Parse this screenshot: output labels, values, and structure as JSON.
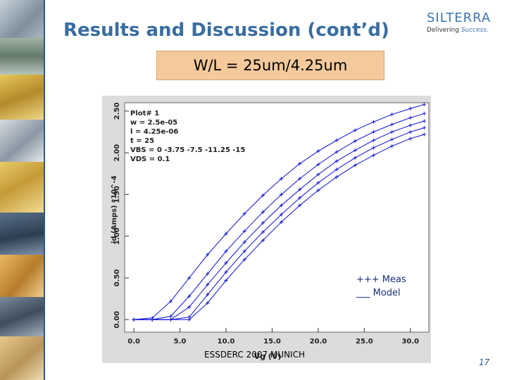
{
  "slide": {
    "title": "Results and Discussion (cont’d)",
    "subtitle": "W/L = 25um/4.25um",
    "footer": "ESSDERC 2007 MUNICH",
    "page_number": "17"
  },
  "logo": {
    "name": "SILTERRA",
    "tagline_prefix": "Delivering ",
    "tagline_emph": "Success."
  },
  "legend": {
    "meas": "+++ Meas",
    "model": "___ Model"
  },
  "colors": {
    "title": "#3a6da0",
    "series": "#1f24d6",
    "subtitle_box": "#f4c99c"
  },
  "chart_data": {
    "type": "line",
    "title": "",
    "xlabel": "Vg (V)",
    "ylabel": "id (Amps) *10^-4",
    "xlim": [
      -1,
      32
    ],
    "ylim": [
      -0.15,
      2.6
    ],
    "x_ticks": [
      "0.0",
      "5.0",
      "10.0",
      "15.0",
      "20.0",
      "25.0",
      "30.0"
    ],
    "y_ticks": [
      "0.00",
      "0.50",
      "1.00",
      "1.50",
      "2.00",
      "2.50"
    ],
    "grid": false,
    "legend_position": "bottom-right",
    "annotation": [
      "Plot# 1",
      "w = 2.5e-05",
      "l = 4.25e-06",
      "t = 25",
      "VBS = 0 -3.75 -7.5 -11.25 -15",
      "VDS = 0.1"
    ],
    "series": [
      {
        "vth": 1.0,
        "x": [
          0,
          2,
          4,
          6,
          8,
          10,
          12,
          14,
          16,
          18,
          20,
          22,
          24,
          26,
          28,
          30,
          31.5
        ],
        "values": [
          0.0,
          0.02,
          0.22,
          0.5,
          0.78,
          1.03,
          1.27,
          1.49,
          1.69,
          1.87,
          2.02,
          2.15,
          2.27,
          2.37,
          2.46,
          2.53,
          2.58
        ]
      },
      {
        "vth": 3.5,
        "x": [
          0,
          2,
          4,
          6,
          8,
          10,
          12,
          14,
          16,
          18,
          20,
          22,
          24,
          26,
          28,
          30,
          31.5
        ],
        "values": [
          0.0,
          0.0,
          0.04,
          0.28,
          0.55,
          0.82,
          1.06,
          1.29,
          1.5,
          1.69,
          1.86,
          2.01,
          2.14,
          2.25,
          2.34,
          2.42,
          2.47
        ]
      },
      {
        "vth": 4.8,
        "x": [
          0,
          2,
          4,
          6,
          8,
          10,
          12,
          14,
          16,
          18,
          20,
          22,
          24,
          26,
          28,
          30,
          31.5
        ],
        "values": [
          0.0,
          0.0,
          0.0,
          0.15,
          0.42,
          0.68,
          0.93,
          1.16,
          1.37,
          1.56,
          1.74,
          1.9,
          2.03,
          2.15,
          2.25,
          2.33,
          2.38
        ]
      },
      {
        "vth": 6.0,
        "x": [
          0,
          2,
          4,
          6,
          8,
          10,
          12,
          14,
          16,
          18,
          20,
          22,
          24,
          26,
          28,
          30,
          31.5
        ],
        "values": [
          0.0,
          0.0,
          0.0,
          0.03,
          0.3,
          0.57,
          0.82,
          1.05,
          1.26,
          1.46,
          1.64,
          1.8,
          1.94,
          2.06,
          2.16,
          2.25,
          2.3
        ]
      },
      {
        "vth": 7.0,
        "x": [
          0,
          2,
          4,
          6,
          8,
          10,
          12,
          14,
          16,
          18,
          20,
          22,
          24,
          26,
          28,
          30,
          31.5
        ],
        "values": [
          0.0,
          0.0,
          0.0,
          0.0,
          0.2,
          0.47,
          0.72,
          0.95,
          1.17,
          1.37,
          1.55,
          1.71,
          1.85,
          1.97,
          2.08,
          2.17,
          2.22
        ]
      }
    ]
  }
}
